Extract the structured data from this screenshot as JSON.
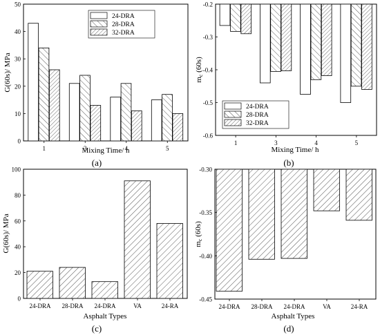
{
  "chart_data": [
    {
      "id": "a",
      "type": "bar",
      "panel_label": "(a)",
      "categories": [
        "1",
        "3",
        "4",
        "5"
      ],
      "series": [
        {
          "name": "24-DRA",
          "values": [
            43,
            21,
            16,
            15
          ]
        },
        {
          "name": "28-DRA",
          "values": [
            34,
            24,
            21,
            17
          ]
        },
        {
          "name": "32-DRA",
          "values": [
            26,
            13,
            11,
            10
          ]
        }
      ],
      "xlabel": "Mixing Time/ h",
      "ylabel": "G(60s)/  MPa",
      "ylim": [
        0,
        50
      ],
      "yticks": [
        "0",
        "10",
        "20",
        "30",
        "40",
        "50"
      ],
      "legend_position": "top-right",
      "grid": false
    },
    {
      "id": "b",
      "type": "bar",
      "panel_label": "(b)",
      "categories": [
        "1",
        "3",
        "4",
        "5"
      ],
      "series": [
        {
          "name": "24-DRA",
          "values": [
            -0.265,
            -0.44,
            -0.475,
            -0.5
          ]
        },
        {
          "name": "28-DRA",
          "values": [
            -0.283,
            -0.405,
            -0.43,
            -0.45
          ]
        },
        {
          "name": "32-DRA",
          "values": [
            -0.29,
            -0.403,
            -0.418,
            -0.46
          ]
        }
      ],
      "xlabel": "Mixing Time/ h",
      "ylabel": "mc (60s)",
      "ylim": [
        -0.6,
        -0.2
      ],
      "bar_base": -0.2,
      "yticks": [
        "-0.2",
        "-0.3",
        "-0.4",
        "-0.5",
        "-0.6"
      ],
      "legend_position": "bottom-left",
      "grid": false
    },
    {
      "id": "c",
      "type": "bar",
      "panel_label": "(c)",
      "categories": [
        "24-DRA",
        "28-DRA",
        "24-DRA",
        "VA",
        "24-RA"
      ],
      "series": [
        {
          "values": [
            21,
            24,
            13,
            91,
            58
          ]
        }
      ],
      "xlabel": "Asphalt Types",
      "ylabel": "G(60s)/  MPa",
      "ylim": [
        0,
        100
      ],
      "yticks": [
        "0",
        "20",
        "40",
        "60",
        "80",
        "100"
      ],
      "grid": false
    },
    {
      "id": "d",
      "type": "bar",
      "panel_label": "(d)",
      "categories": [
        "24-DRA",
        "28-DRA",
        "24-DRA",
        "VA",
        "24-RA"
      ],
      "series": [
        {
          "values": [
            -0.441,
            -0.404,
            -0.403,
            -0.348,
            -0.359
          ]
        }
      ],
      "xlabel": "Asphalt Types",
      "ylabel": "mc (60s)",
      "ylim": [
        -0.45,
        -0.3
      ],
      "bar_base": -0.3,
      "yticks": [
        "-0.30",
        "-0.35",
        "-0.40",
        "-0.45"
      ],
      "grid": false
    }
  ]
}
